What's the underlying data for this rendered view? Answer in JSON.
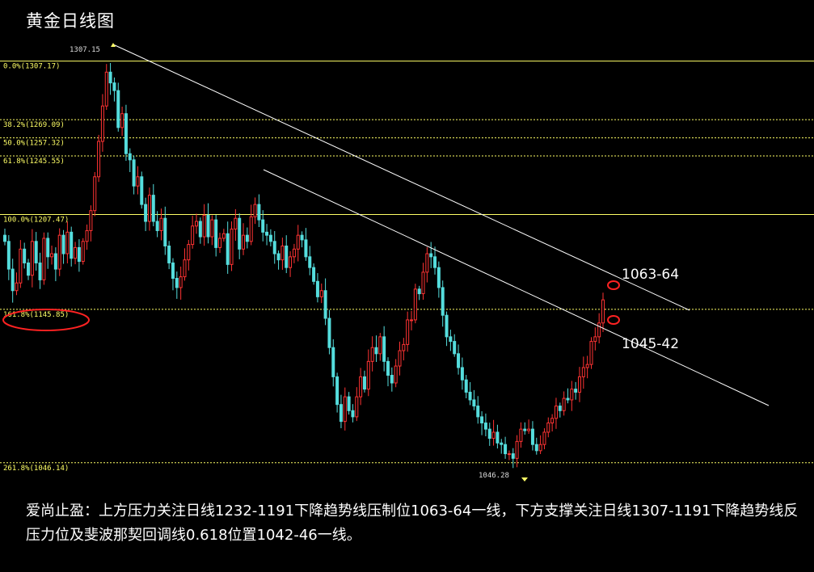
{
  "title": "黄金日线图",
  "caption": "爱尚止盈：上方压力关注日线1232-1191下降趋势线压制位1063-64一线，下方支撑关注日线1307-1191下降趋势线反压力位及斐波那契回调线0.618位置1042-46一线。",
  "chart_data": {
    "type": "candlestick",
    "ylim": [
      1035,
      1318
    ],
    "colors": {
      "up": "#ff3333",
      "down": "#55dddd",
      "fib": "#ffff66",
      "trend": "#ffffff",
      "highlight": "#ff2222"
    },
    "fib_levels": [
      {
        "label": "0.0%(1307.17)",
        "price": 1307.17
      },
      {
        "label": "38.2%(1269.09)",
        "price": 1269.09
      },
      {
        "label": "50.0%(1257.32)",
        "price": 1257.32
      },
      {
        "label": "61.8%(1245.55)",
        "price": 1245.55
      },
      {
        "label": "100.0%(1207.47)",
        "price": 1207.47
      },
      {
        "label": "161.8%(1145.85)",
        "price": 1145.85
      },
      {
        "label": "261.8%(1046.14)",
        "price": 1046.14
      }
    ],
    "high_marker": {
      "label": "1307.15",
      "price": 1307.15
    },
    "low_marker": {
      "label": "1046.28",
      "price": 1046.28
    },
    "zones": [
      {
        "label": "1063-64",
        "price": 1063.5
      },
      {
        "label": "1045-42",
        "price": 1043.5
      }
    ],
    "closes": [
      1190,
      1172,
      1158,
      1163,
      1185,
      1176,
      1168,
      1190,
      1176,
      1165,
      1192,
      1180,
      1182,
      1172,
      1194,
      1182,
      1196,
      1179,
      1186,
      1177,
      1190,
      1197,
      1210,
      1232,
      1255,
      1278,
      1300,
      1293,
      1288,
      1264,
      1273,
      1247,
      1243,
      1226,
      1232,
      1214,
      1203,
      1220,
      1203,
      1197,
      1205,
      1187,
      1176,
      1166,
      1160,
      1167,
      1178,
      1188,
      1200,
      1203,
      1193,
      1207,
      1193,
      1204,
      1186,
      1192,
      1195,
      1175,
      1198,
      1205,
      1185,
      1194,
      1190,
      1206,
      1214,
      1204,
      1196,
      1194,
      1190,
      1182,
      1178,
      1187,
      1173,
      1180,
      1185,
      1194,
      1191,
      1180,
      1173,
      1164,
      1154,
      1158,
      1140,
      1121,
      1102,
      1084,
      1073,
      1089,
      1080,
      1076,
      1089,
      1102,
      1094,
      1112,
      1121,
      1117,
      1128,
      1112,
      1103,
      1098,
      1109,
      1119,
      1123,
      1139,
      1139,
      1159,
      1156,
      1170,
      1182,
      1180,
      1173,
      1160,
      1142,
      1128,
      1125,
      1117,
      1108,
      1100,
      1092,
      1087,
      1083,
      1076,
      1072,
      1068,
      1062,
      1066,
      1059,
      1058,
      1052,
      1052,
      1049,
      1060,
      1068,
      1067,
      1068,
      1058,
      1054,
      1058,
      1066,
      1072,
      1075,
      1083,
      1080,
      1088,
      1087,
      1094,
      1092,
      1102,
      1108,
      1110,
      1125,
      1128,
      1137,
      1152
    ]
  }
}
